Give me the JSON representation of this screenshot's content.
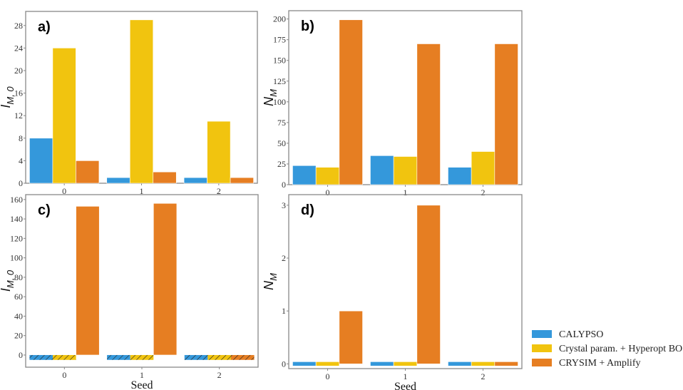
{
  "legend": {
    "position": "bottom-right",
    "entries": [
      {
        "name": "CALYPSO",
        "color": "#3498db"
      },
      {
        "name": "Crystal param. + Hyperopt BO",
        "color": "#f1c40f"
      },
      {
        "name": "CRYSIM + Amplify",
        "color": "#e67e22"
      }
    ]
  },
  "chart_data": [
    {
      "type": "bar",
      "panel": "a)",
      "title": "",
      "xlabel": "",
      "ylabel": "I_{M,0}",
      "ylabel_main": "I",
      "ylabel_sub": "M, 0",
      "categories": [
        "0",
        "1",
        "2"
      ],
      "ylim": [
        0,
        30.5
      ],
      "yticks": [
        0,
        4,
        8,
        12,
        16,
        20,
        24,
        28
      ],
      "series": [
        {
          "name": "CALYPSO",
          "values": [
            8,
            1,
            1
          ]
        },
        {
          "name": "Crystal param. + Hyperopt BO",
          "values": [
            24,
            29,
            11
          ]
        },
        {
          "name": "CRYSIM + Amplify",
          "values": [
            4,
            2,
            1
          ]
        }
      ],
      "hatched": []
    },
    {
      "type": "bar",
      "panel": "b)",
      "title": "",
      "xlabel": "",
      "ylabel": "N_M",
      "ylabel_main": "N",
      "ylabel_sub": "M",
      "categories": [
        "0",
        "1",
        "2"
      ],
      "ylim": [
        0,
        210
      ],
      "yticks": [
        0,
        25,
        50,
        75,
        100,
        125,
        150,
        175,
        200
      ],
      "series": [
        {
          "name": "CALYPSO",
          "values": [
            23,
            35,
            21
          ]
        },
        {
          "name": "Crystal param. + Hyperopt BO",
          "values": [
            21,
            34,
            40
          ]
        },
        {
          "name": "CRYSIM + Amplify",
          "values": [
            199,
            170,
            170
          ]
        }
      ],
      "hatched": []
    },
    {
      "type": "bar",
      "panel": "c)",
      "title": "",
      "xlabel": "Seed",
      "ylabel": "I_{M,0}",
      "ylabel_main": "I",
      "ylabel_sub": "M, 0",
      "categories": [
        "0",
        "1",
        "2"
      ],
      "ylim": [
        -12.5,
        165
      ],
      "yticks": [
        0,
        20,
        40,
        60,
        80,
        100,
        120,
        140,
        160
      ],
      "series": [
        {
          "name": "CALYPSO",
          "values": [
            null,
            null,
            null
          ]
        },
        {
          "name": "Crystal param. + Hyperopt BO",
          "values": [
            null,
            null,
            null
          ]
        },
        {
          "name": "CRYSIM + Amplify",
          "values": [
            153,
            156,
            null
          ]
        }
      ],
      "hatched": [
        {
          "series": 0,
          "category": 0
        },
        {
          "series": 1,
          "category": 0
        },
        {
          "series": 0,
          "category": 1
        },
        {
          "series": 1,
          "category": 1
        },
        {
          "series": 0,
          "category": 2
        },
        {
          "series": 1,
          "category": 2
        },
        {
          "series": 2,
          "category": 2
        }
      ],
      "hatched_band": [
        -5,
        0
      ]
    },
    {
      "type": "bar",
      "panel": "d)",
      "title": "",
      "xlabel": "Seed",
      "ylabel": "N_M",
      "ylabel_main": "N",
      "ylabel_sub": "M",
      "categories": [
        "0",
        "1",
        "2"
      ],
      "ylim": [
        -0.09,
        3.2
      ],
      "yticks": [
        0,
        1,
        2,
        3
      ],
      "series": [
        {
          "name": "CALYPSO",
          "values": [
            0,
            0,
            0
          ]
        },
        {
          "name": "Crystal param. + Hyperopt BO",
          "values": [
            0,
            0,
            0
          ]
        },
        {
          "name": "CRYSIM + Amplify",
          "values": [
            1,
            3,
            0
          ]
        }
      ],
      "hatched": [],
      "zero_band": 0.04
    }
  ]
}
